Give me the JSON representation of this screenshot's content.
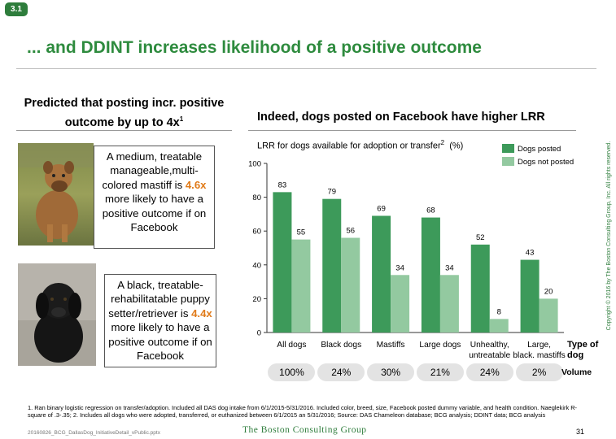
{
  "slide": {
    "badge": "3.1",
    "title": "... and DDINT increases likelihood of a positive outcome",
    "page_number": "31",
    "file_name": "20160826_BCG_DallasDog_InitiativeDetail_vPublic.pptx",
    "brand": "The Boston Consulting Group",
    "copyright": "Copyright © 2016 by The Boston Consulting Group, Inc. All rights reserved."
  },
  "left_panel": {
    "heading": "Predicted that posting incr. positive outcome by up to 4x",
    "heading_footnote": "1",
    "cards": [
      {
        "text_before": "A medium, treatable manageable,multi-colored mastiff  is ",
        "highlight": "4.6x",
        "text_after": " more likely to have a positive outcome if on Facebook",
        "photo": "brown-mastiff-photo"
      },
      {
        "text_before": "A black, treatable-rehabilitatable puppy setter/retriever is ",
        "highlight": "4.4x",
        "text_after": " more likely to have a positive outcome if on Facebook",
        "photo": "black-puppy-photo"
      }
    ]
  },
  "right_panel": {
    "heading": "Indeed, dogs posted on Facebook have higher LRR",
    "subtitle": "LRR for dogs available for adoption or transfer",
    "subtitle_footnote": "2",
    "subtitle_unit": "(%)",
    "x_axis_title": "Type of dog",
    "volume_label": "Volume",
    "volumes": [
      "100%",
      "24%",
      "30%",
      "21%",
      "24%",
      "2%"
    ]
  },
  "chart_data": {
    "type": "bar",
    "categories": [
      "All dogs",
      "Black dogs",
      "Mastiffs",
      "Large dogs",
      "Unhealthy, untreatable",
      "Large, black, mastiffs"
    ],
    "series": [
      {
        "name": "Dogs posted",
        "values": [
          83,
          79,
          69,
          68,
          52,
          43
        ],
        "color": "#3d9a5a"
      },
      {
        "name": "Dogs not posted",
        "values": [
          55,
          56,
          34,
          34,
          8,
          20
        ],
        "color": "#93c9a0"
      }
    ],
    "ylim": [
      0,
      100
    ],
    "yticks": [
      0,
      20,
      40,
      60,
      80,
      100
    ],
    "grid": false,
    "legend": "top-right"
  },
  "footnotes": "1. Ran binary logistic regression on  transfer/adoption. Included all DAS dog intake from 6/1/2015-5/31/2016. Included color, breed, size, Facebook posted dummy variable, and health condition. Naeglekirk R-square of .3-.35; 2. Includes all dogs who were adopted, transferred, or euthanized between 6/1/2015 an 5/31/2016; Source: DAS Chameleon database; BCG analysis; DDINT data; BCG analysis"
}
